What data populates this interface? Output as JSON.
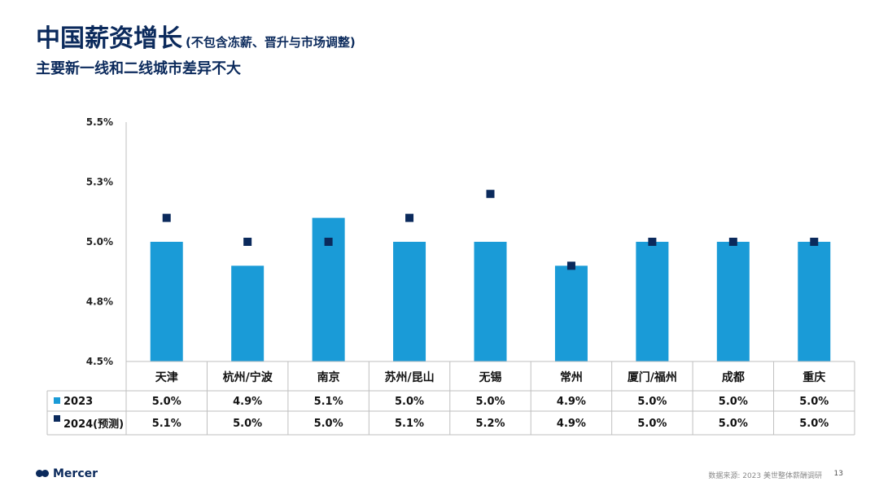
{
  "header": {
    "title": "中国薪资增长",
    "title_note": "(不包含冻薪、晋升与市场调整)",
    "subtitle": "主要新一线和二线城市差异不大"
  },
  "footer": {
    "logo": "Mercer",
    "source": "数据来源: 2023 美世整体薪酬调研",
    "page": "13"
  },
  "colors": {
    "bar": "#1a9bd7",
    "marker": "#0b2a5c",
    "grid": "#bfbfbf"
  },
  "chart_data": {
    "type": "bar",
    "ylim": [
      4.5,
      5.5
    ],
    "y_ticks": [
      "5.5%",
      "5.3%",
      "5.0%",
      "4.8%",
      "4.5%"
    ],
    "y_tick_values": [
      5.5,
      5.25,
      5.0,
      4.75,
      4.5
    ],
    "categories": [
      "天津",
      "杭州/宁波",
      "南京",
      "苏州/昆山",
      "无锡",
      "常州",
      "厦门/福州",
      "成都",
      "重庆"
    ],
    "series": [
      {
        "name": "2023",
        "kind": "bar",
        "values": [
          5.0,
          4.9,
          5.1,
          5.0,
          5.0,
          4.9,
          5.0,
          5.0,
          5.0
        ],
        "labels": [
          "5.0%",
          "4.9%",
          "5.1%",
          "5.0%",
          "5.0%",
          "4.9%",
          "5.0%",
          "5.0%",
          "5.0%"
        ]
      },
      {
        "name": "2024(预测)",
        "kind": "marker",
        "values": [
          5.1,
          5.0,
          5.0,
          5.1,
          5.2,
          4.9,
          5.0,
          5.0,
          5.0
        ],
        "labels": [
          "5.1%",
          "5.0%",
          "5.0%",
          "5.1%",
          "5.2%",
          "4.9%",
          "5.0%",
          "5.0%",
          "5.0%"
        ]
      }
    ]
  }
}
